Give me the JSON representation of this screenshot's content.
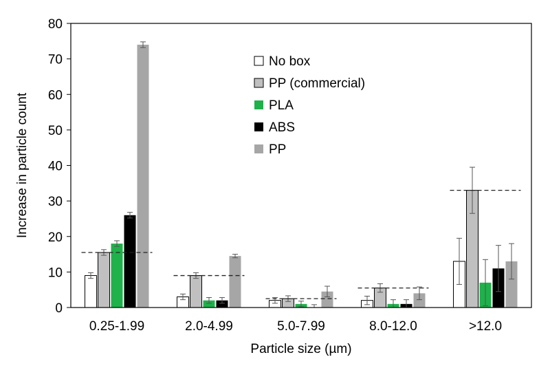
{
  "chart_data": {
    "type": "bar",
    "xlabel": "Particle size (µm)",
    "ylabel": "Increase in particle count",
    "ylim": [
      0,
      80
    ],
    "yticks": [
      0,
      10,
      20,
      30,
      40,
      50,
      60,
      70,
      80
    ],
    "grid": false,
    "legend_position": "top-center",
    "categories": [
      "0.25-1.99",
      "2.0-4.99",
      "5.0-7.99",
      "8.0-12.0",
      ">12.0"
    ],
    "series": [
      {
        "name": "No box",
        "color": "#ffffff",
        "stroke": "#000000",
        "values": [
          9,
          3,
          2,
          2,
          13
        ],
        "errors": [
          0.8,
          0.8,
          0.8,
          1.2,
          6.5
        ]
      },
      {
        "name": "PP (commercial)",
        "color": "#c0c0c0",
        "stroke": "#000000",
        "values": [
          15.5,
          9,
          2.5,
          5.5,
          33
        ],
        "errors": [
          0.8,
          0.8,
          0.8,
          1.2,
          6.5
        ]
      },
      {
        "name": "PLA",
        "color": "#1fb14a",
        "stroke": "none",
        "values": [
          18,
          2,
          1,
          1,
          7
        ],
        "errors": [
          0.8,
          0.8,
          0.8,
          1.2,
          6.5
        ]
      },
      {
        "name": "ABS",
        "color": "#000000",
        "stroke": "none",
        "values": [
          26,
          2,
          0,
          1,
          11
        ],
        "errors": [
          0.8,
          0.8,
          0.8,
          1.2,
          6.5
        ]
      },
      {
        "name": "PP",
        "color": "#a6a6a6",
        "stroke": "none",
        "values": [
          74,
          14.5,
          4.5,
          4,
          13
        ],
        "errors": [
          0.8,
          0.5,
          1.5,
          1.8,
          5
        ]
      }
    ],
    "reference_lines": [
      {
        "category": "0.25-1.99",
        "value": 15.5
      },
      {
        "category": "2.0-4.99",
        "value": 9
      },
      {
        "category": "5.0-7.99",
        "value": 2.5
      },
      {
        "category": "8.0-12.0",
        "value": 5.5
      },
      {
        "category": ">12.0",
        "value": 33
      }
    ]
  }
}
